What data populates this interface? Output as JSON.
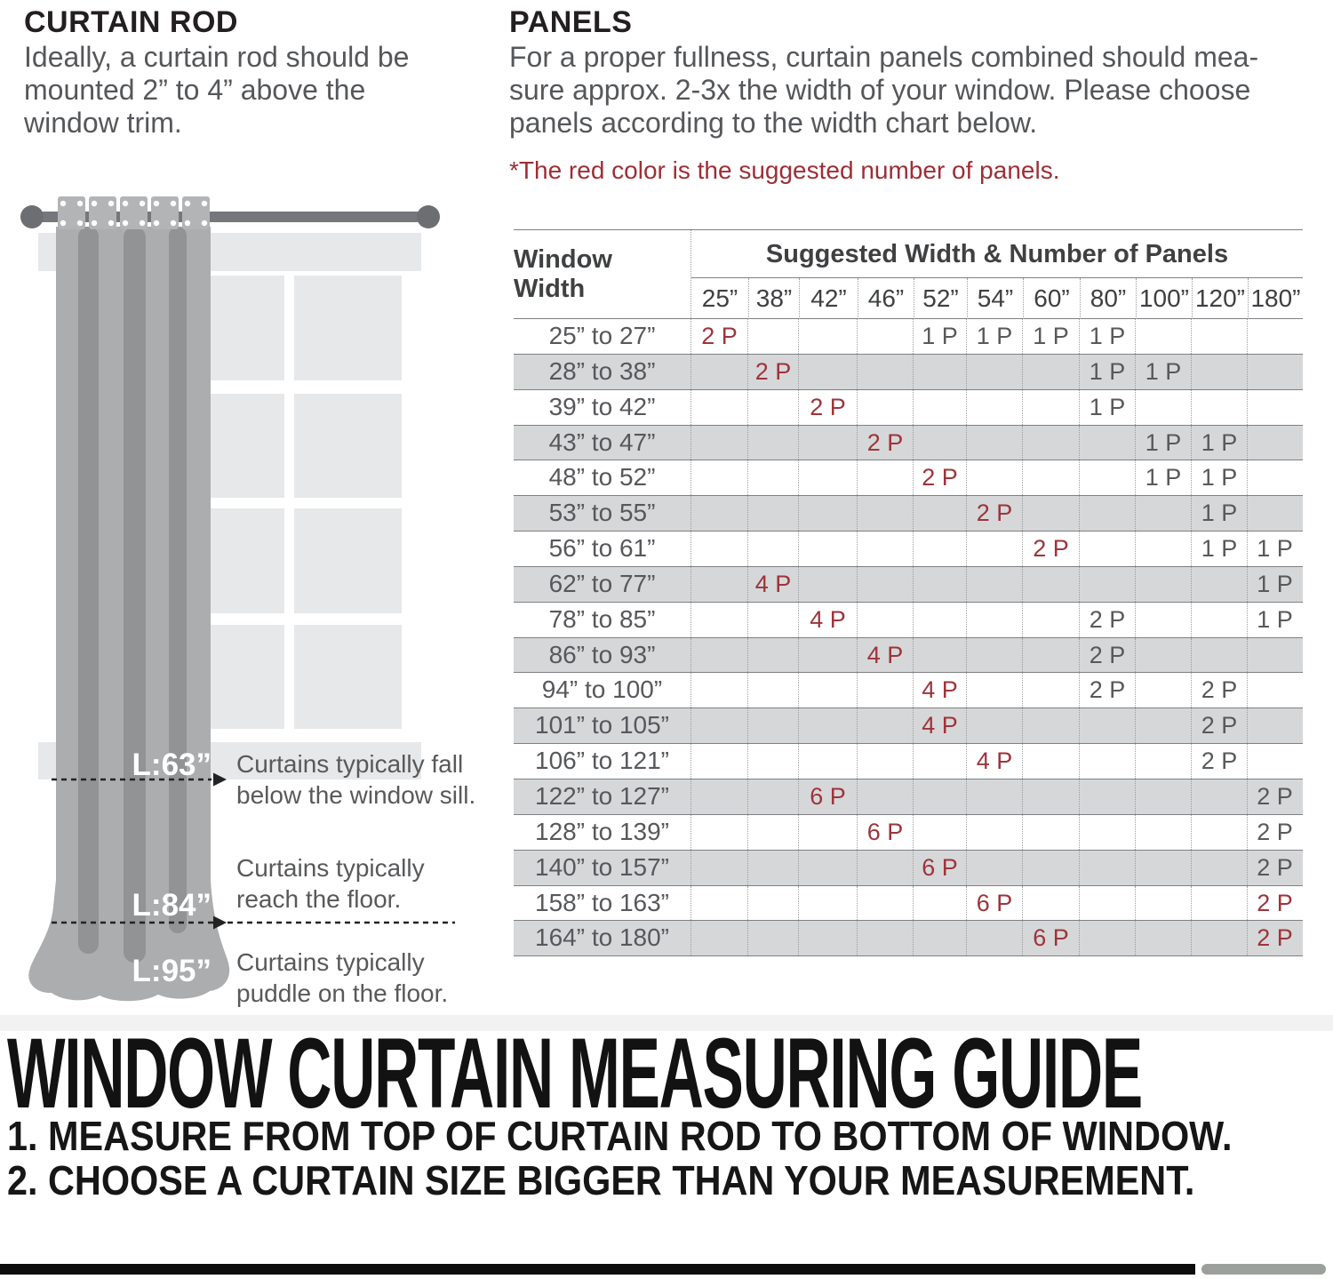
{
  "curtain_rod_section": {
    "heading": "CURTAIN ROD",
    "body": "Ideally, a curtain rod should be\nmounted 2” to 4” above the\nwindow trim.",
    "labels": {
      "l63": "L:63”",
      "l84": "L:84”",
      "l95": "L:95”"
    },
    "captions": {
      "sill_1": "Curtains typically fall",
      "sill_2": "below the window sill.",
      "floor_1": "Curtains typically",
      "floor_2": "reach the floor.",
      "puddle_1": "Curtains typically",
      "puddle_2": "puddle on the floor."
    }
  },
  "panels_section": {
    "heading": "PANELS",
    "body": "For a proper fullness, curtain panels combined should mea-\nsure approx. 2-3x the width of your window. Please choose\npanels according to the width chart below.",
    "note": "*The red color is the suggested number of panels."
  },
  "table": {
    "corner_header": "Window Width",
    "span_header": "Suggested Width & Number of Panels",
    "columns": [
      "25”",
      "38”",
      "42”",
      "46”",
      "52”",
      "54”",
      "60”",
      "80”",
      "100”",
      "120”",
      "180”"
    ],
    "colors": {
      "suggested_red": "#9d343b",
      "value_dark": "#58595b",
      "shaded_row_bg": "#d6d7d8",
      "rule": "#7e8083",
      "dotted_rule": "#9b9da0"
    },
    "rows": [
      {
        "label": "25” to 27”",
        "cells": [
          {
            "col": "25”",
            "value": "2 P",
            "red": true
          },
          {
            "col": "52”",
            "value": "1 P"
          },
          {
            "col": "54”",
            "value": "1 P"
          },
          {
            "col": "60”",
            "value": "1 P"
          },
          {
            "col": "80”",
            "value": "1 P"
          }
        ]
      },
      {
        "label": "28” to 38”",
        "cells": [
          {
            "col": "38”",
            "value": "2 P",
            "red": true
          },
          {
            "col": "80”",
            "value": "1 P"
          },
          {
            "col": "100”",
            "value": "1 P"
          }
        ]
      },
      {
        "label": "39” to 42”",
        "cells": [
          {
            "col": "42”",
            "value": "2 P",
            "red": true
          },
          {
            "col": "80”",
            "value": "1 P"
          }
        ]
      },
      {
        "label": "43” to 47”",
        "cells": [
          {
            "col": "46”",
            "value": "2 P",
            "red": true
          },
          {
            "col": "100”",
            "value": "1 P"
          },
          {
            "col": "120”",
            "value": "1 P"
          }
        ]
      },
      {
        "label": "48” to 52”",
        "cells": [
          {
            "col": "52”",
            "value": "2 P",
            "red": true
          },
          {
            "col": "100”",
            "value": "1 P"
          },
          {
            "col": "120”",
            "value": "1 P"
          }
        ]
      },
      {
        "label": "53” to 55”",
        "cells": [
          {
            "col": "54”",
            "value": "2 P",
            "red": true
          },
          {
            "col": "120”",
            "value": "1 P"
          }
        ]
      },
      {
        "label": "56” to 61”",
        "cells": [
          {
            "col": "60”",
            "value": "2 P",
            "red": true
          },
          {
            "col": "120”",
            "value": "1 P"
          },
          {
            "col": "180”",
            "value": "1 P"
          }
        ]
      },
      {
        "label": "62” to 77”",
        "cells": [
          {
            "col": "38”",
            "value": "4 P",
            "red": true
          },
          {
            "col": "180”",
            "value": "1 P"
          }
        ]
      },
      {
        "label": "78” to 85”",
        "cells": [
          {
            "col": "42”",
            "value": "4 P",
            "red": true
          },
          {
            "col": "80”",
            "value": "2 P"
          },
          {
            "col": "180”",
            "value": "1 P"
          }
        ]
      },
      {
        "label": "86” to 93”",
        "cells": [
          {
            "col": "46”",
            "value": "4 P",
            "red": true
          },
          {
            "col": "80”",
            "value": "2 P"
          }
        ]
      },
      {
        "label": "94” to 100”",
        "cells": [
          {
            "col": "52”",
            "value": "4 P",
            "red": true
          },
          {
            "col": "80”",
            "value": "2 P"
          },
          {
            "col": "120”",
            "value": "2 P"
          }
        ]
      },
      {
        "label": "101” to 105”",
        "cells": [
          {
            "col": "52”",
            "value": "4 P",
            "red": true
          },
          {
            "col": "120”",
            "value": "2 P"
          }
        ]
      },
      {
        "label": "106” to 121”",
        "cells": [
          {
            "col": "54”",
            "value": "4 P",
            "red": true
          },
          {
            "col": "120”",
            "value": "2 P"
          }
        ]
      },
      {
        "label": "122” to 127”",
        "cells": [
          {
            "col": "42”",
            "value": "6 P",
            "red": true
          },
          {
            "col": "180”",
            "value": "2 P"
          }
        ]
      },
      {
        "label": "128” to 139”",
        "cells": [
          {
            "col": "46”",
            "value": "6 P",
            "red": true
          },
          {
            "col": "180”",
            "value": "2 P"
          }
        ]
      },
      {
        "label": "140” to 157”",
        "cells": [
          {
            "col": "52”",
            "value": "6 P",
            "red": true
          },
          {
            "col": "180”",
            "value": "2 P"
          }
        ]
      },
      {
        "label": "158” to 163”",
        "cells": [
          {
            "col": "54”",
            "value": "6 P",
            "red": true
          },
          {
            "col": "180”",
            "value": "2 P",
            "red": true
          }
        ]
      },
      {
        "label": "164” to 180”",
        "cells": [
          {
            "col": "60”",
            "value": "6 P",
            "red": true
          },
          {
            "col": "180”",
            "value": "2 P",
            "red": true
          }
        ]
      }
    ]
  },
  "guide_section": {
    "title": "WINDOW CURTAIN MEASURING GUIDE",
    "steps": [
      "1. MEASURE FROM TOP OF CURTAIN ROD TO BOTTOM OF WINDOW.",
      "2. CHOOSE A CURTAIN SIZE BIGGER THAN YOUR MEASUREMENT."
    ]
  }
}
